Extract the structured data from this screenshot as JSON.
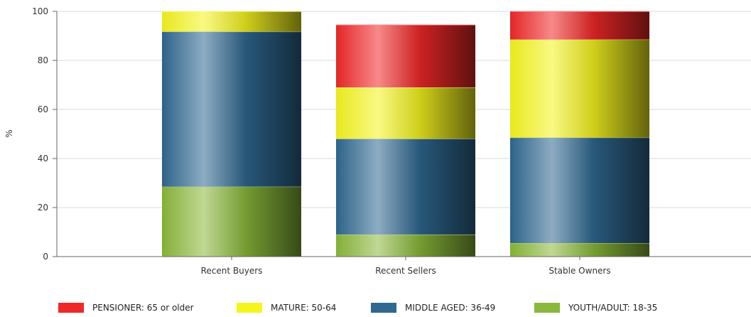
{
  "chart_data": {
    "type": "bar",
    "stacked": true,
    "categories": [
      "Recent Buyers",
      "Recent Sellers",
      "Stable Owners"
    ],
    "series": [
      {
        "name": "YOUTH/ADULT: 18-35",
        "color": "#8ab83a",
        "values": [
          28.5,
          9.0,
          5.5
        ]
      },
      {
        "name": "MIDDLE AGED: 36-49",
        "color": "#2f6890",
        "values": [
          63.2,
          39.0,
          43.0
        ]
      },
      {
        "name": "MATURE: 50-64",
        "color": "#f4f41e",
        "values": [
          8.3,
          21.0,
          40.0
        ]
      },
      {
        "name": "PENSIONER: 65 or older",
        "color": "#f02828",
        "values": [
          0.0,
          25.5,
          11.5
        ]
      }
    ],
    "ylabel": "%",
    "xlabel": "",
    "ylim": [
      0,
      100
    ],
    "yticks": [
      "0",
      "20",
      "40",
      "60",
      "80",
      "100"
    ],
    "grid": true,
    "legend_position": "bottom"
  },
  "legend": [
    {
      "label": "PENSIONER: 65 or older",
      "color": "#f02828"
    },
    {
      "label": "MATURE: 50-64",
      "color": "#f4f41e"
    },
    {
      "label": "MIDDLE AGED: 36-49",
      "color": "#2f6890"
    },
    {
      "label": "YOUTH/ADULT: 18-35",
      "color": "#8ab83a"
    }
  ]
}
